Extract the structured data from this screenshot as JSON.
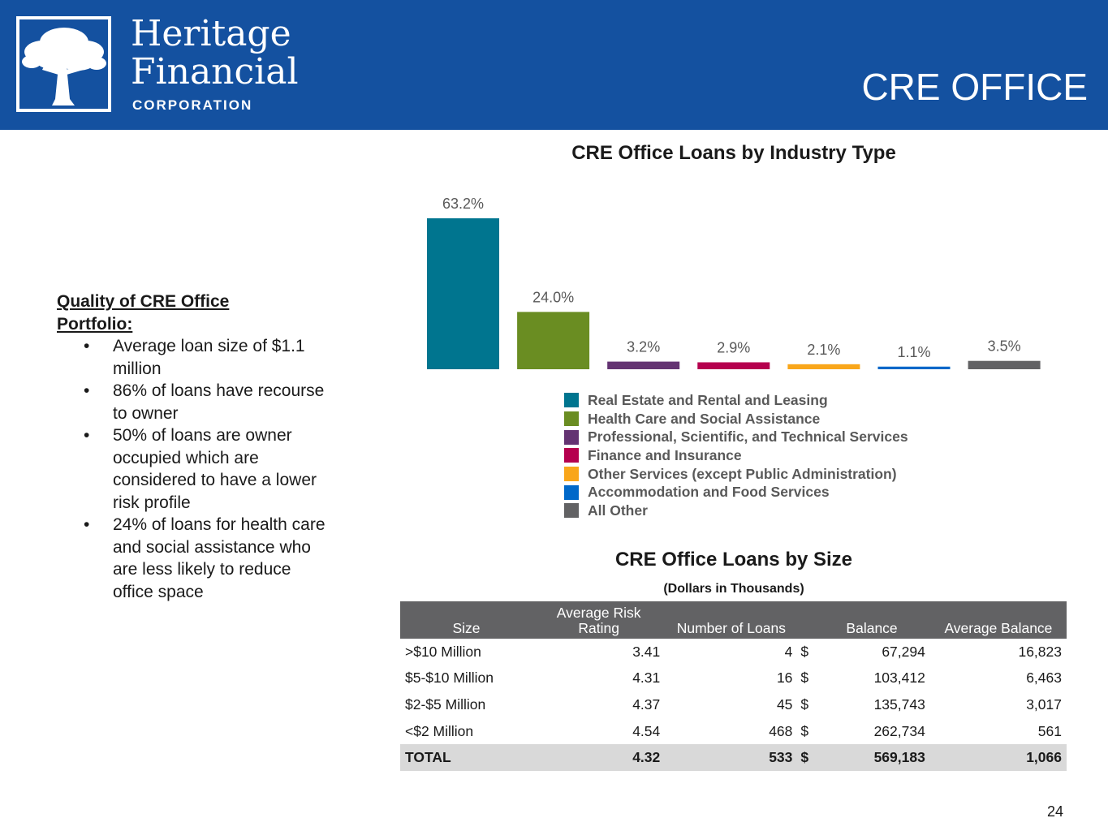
{
  "header": {
    "logo_line1": "Heritage",
    "logo_line2": "Financial",
    "logo_sub": "CORPORATION",
    "title": "CRE OFFICE",
    "background_color": "#1451a0"
  },
  "quality": {
    "title": "Quality of CRE Office Portfolio:",
    "bullets": [
      "Average loan size of $1.1 million",
      "86% of loans have recourse to owner",
      "50% of loans are owner occupied which are considered to have a lower risk profile",
      "24% of loans for health care and social assistance who are less likely to reduce office space"
    ]
  },
  "chart_data": {
    "type": "bar",
    "title": "CRE Office Loans by Industry Type",
    "categories": [
      "Real Estate and Rental and Leasing",
      "Health Care and Social Assistance",
      "Professional, Scientific, and Technical Services",
      "Finance and Insurance",
      "Other Services (except Public Administration)",
      "Accommodation and Food Services",
      "All Other"
    ],
    "values": [
      63.2,
      24.0,
      3.2,
      2.9,
      2.1,
      1.1,
      3.5
    ],
    "labels": [
      "63.2%",
      "24.0%",
      "3.2%",
      "2.9%",
      "2.1%",
      "1.1%",
      "3.5%"
    ],
    "colors": [
      "#00758f",
      "#6a8d22",
      "#643372",
      "#b5004e",
      "#f9a61a",
      "#0068c9",
      "#626264"
    ],
    "ylim": [
      0,
      70
    ],
    "xlabel": "",
    "ylabel": "",
    "legend": "bottom"
  },
  "table": {
    "title": "CRE Office Loans by Size",
    "subtitle": "(Dollars in Thousands)",
    "headers": {
      "size": "Size",
      "risk_line1": "Average Risk",
      "risk_line2": "Rating",
      "count": "Number of Loans",
      "balance": "Balance",
      "avg_balance": "Average Balance"
    },
    "rows": [
      {
        "size": ">$10 Million",
        "risk": "3.41",
        "count": "4",
        "currency": "$",
        "balance": "67,294",
        "avg_balance": "16,823"
      },
      {
        "size": "$5-$10 Million",
        "risk": "4.31",
        "count": "16",
        "currency": "$",
        "balance": "103,412",
        "avg_balance": "6,463"
      },
      {
        "size": "$2-$5 Million",
        "risk": "4.37",
        "count": "45",
        "currency": "$",
        "balance": "135,743",
        "avg_balance": "3,017"
      },
      {
        "size": "<$2 Million",
        "risk": "4.54",
        "count": "468",
        "currency": "$",
        "balance": "262,734",
        "avg_balance": "561"
      }
    ],
    "total": {
      "size": "TOTAL",
      "risk": "4.32",
      "count": "533",
      "currency": "$",
      "balance": "569,183",
      "avg_balance": "1,066"
    }
  },
  "page_number": "24"
}
